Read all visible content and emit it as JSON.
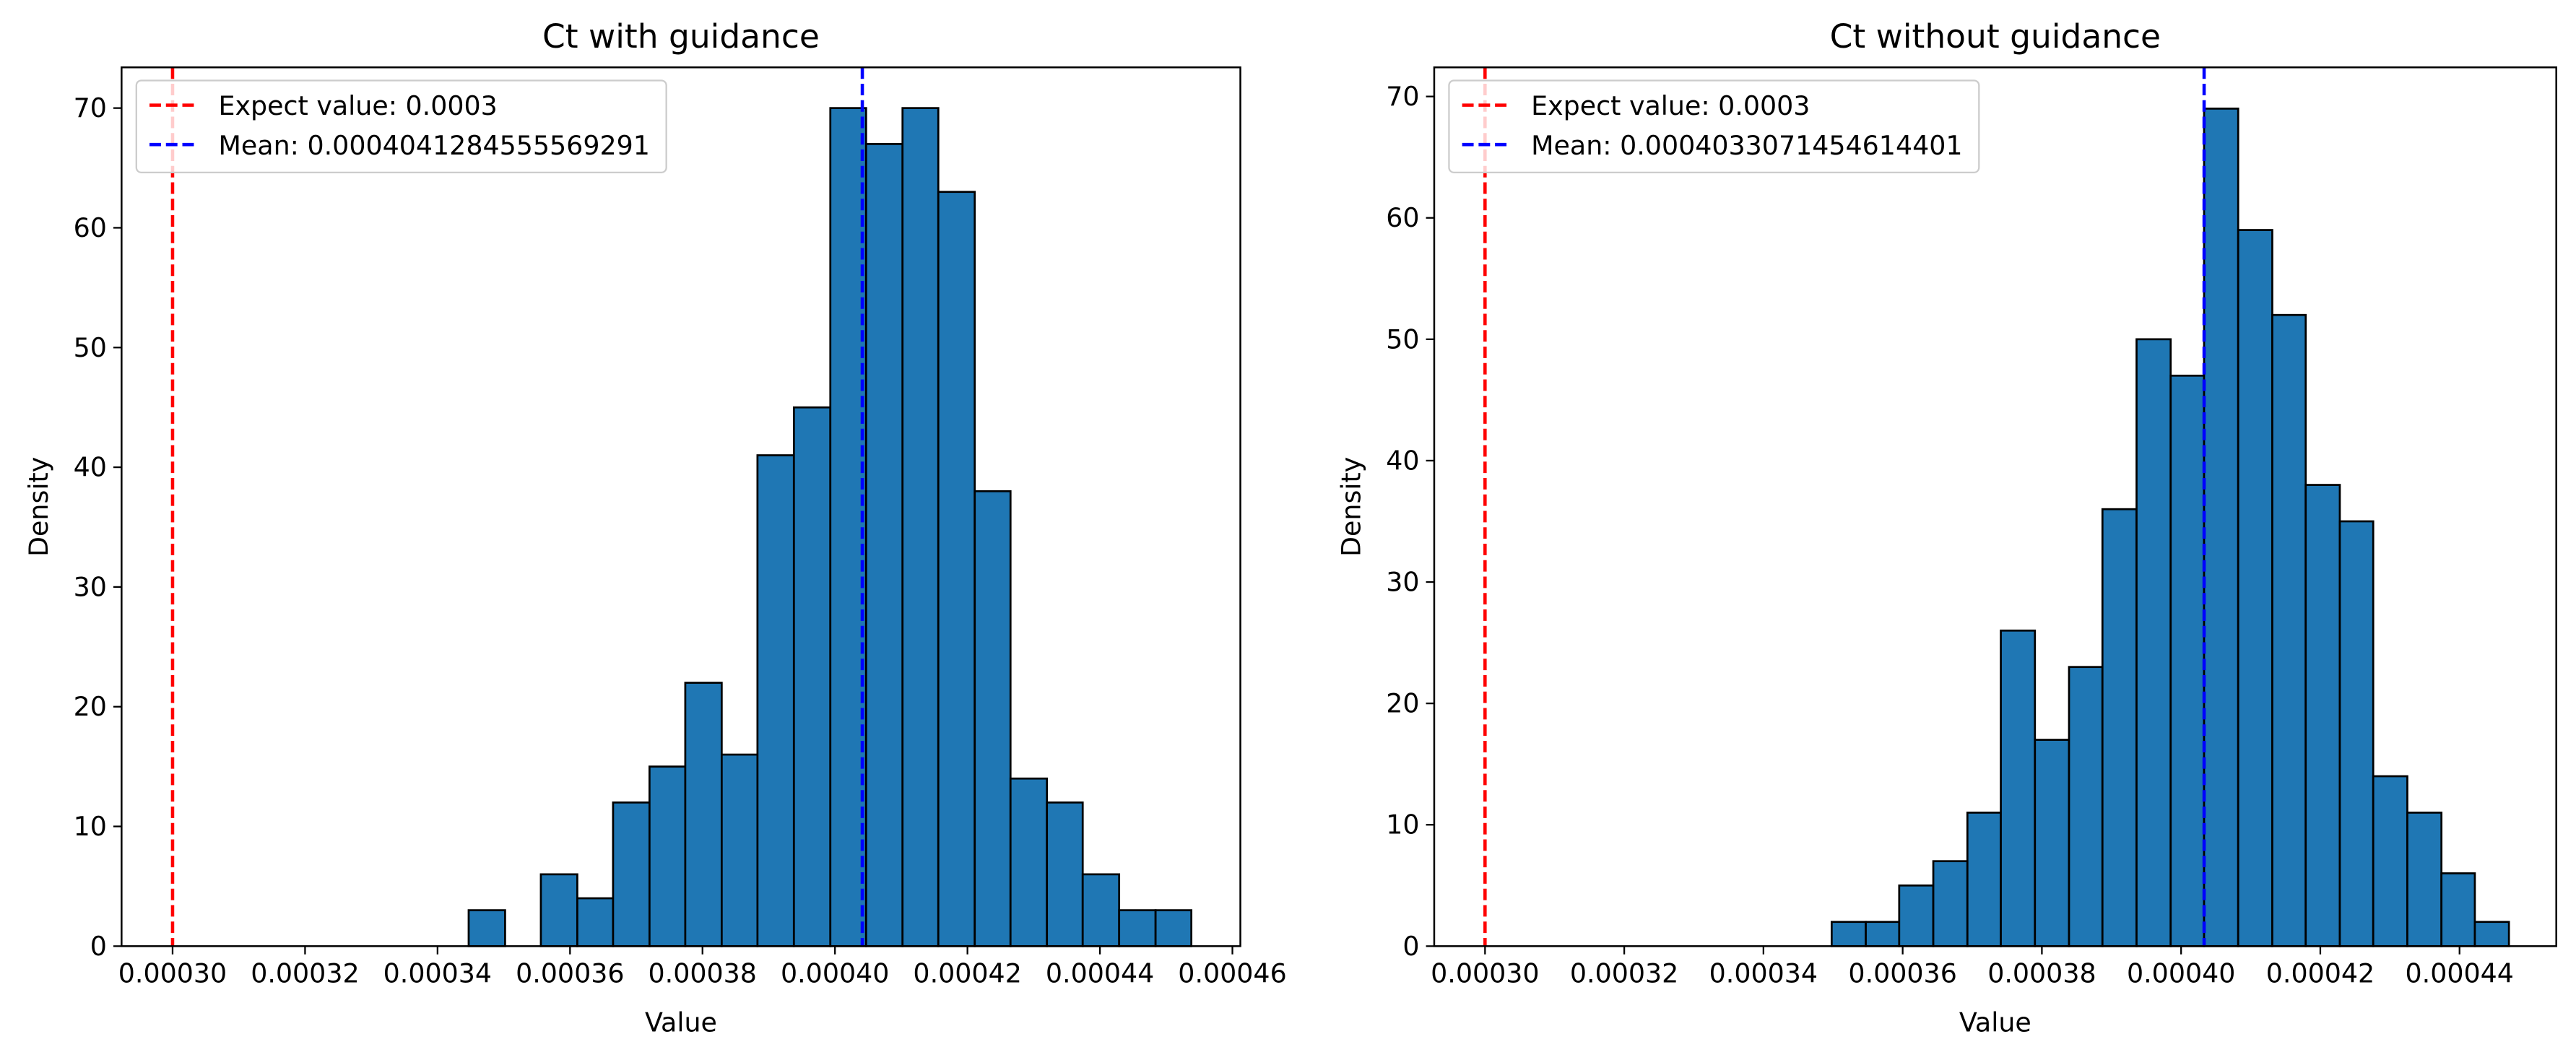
{
  "chart_data": [
    {
      "type": "histogram",
      "title": "Ct with guidance",
      "xlabel": "Value",
      "ylabel": "Density",
      "bins": [
        0.0003447,
        0.0003502,
        0.0003556,
        0.0003611,
        0.0003665,
        0.000372,
        0.0003774,
        0.0003829,
        0.0003883,
        0.0003938,
        0.0003993,
        0.0004047,
        0.0004102,
        0.0004156,
        0.0004211,
        0.0004265,
        0.000432,
        0.0004374,
        0.0004429,
        0.0004484,
        0.0004538
      ],
      "values": [
        3,
        0,
        6,
        4,
        12,
        15,
        22,
        16,
        41,
        45,
        70,
        67,
        70,
        63,
        38,
        14,
        12,
        6,
        3,
        3
      ],
      "color": "#1f77b4",
      "edgecolor": "#000000",
      "xlim": [
        0.0002923,
        0.0004612
      ],
      "ylim": [
        0,
        73.4
      ],
      "xticks": [
        {
          "value": 0.0003,
          "label": "0.00030"
        },
        {
          "value": 0.00032,
          "label": "0.00032"
        },
        {
          "value": 0.00034,
          "label": "0.00034"
        },
        {
          "value": 0.00036,
          "label": "0.00036"
        },
        {
          "value": 0.00038,
          "label": "0.00038"
        },
        {
          "value": 0.0004,
          "label": "0.00040"
        },
        {
          "value": 0.00042,
          "label": "0.00042"
        },
        {
          "value": 0.00044,
          "label": "0.00044"
        },
        {
          "value": 0.00046,
          "label": "0.00046"
        }
      ],
      "yticks": [
        0,
        10,
        20,
        30,
        40,
        50,
        60,
        70
      ],
      "vlines": [
        {
          "name": "Expect value: 0.0003",
          "value": 0.0003,
          "color": "#ff0000"
        },
        {
          "name": "Mean: 0.0004041284555569291",
          "value": 0.0004041284555569291,
          "color": "#0000ff"
        }
      ],
      "legend": "upper left"
    },
    {
      "type": "histogram",
      "title": "Ct without guidance",
      "xlabel": "Value",
      "ylabel": "Density",
      "bins": [
        0.0003498,
        0.0003547,
        0.0003595,
        0.0003644,
        0.0003693,
        0.0003741,
        0.000379,
        0.0003839,
        0.0003887,
        0.0003936,
        0.0003985,
        0.0004033,
        0.0004082,
        0.0004131,
        0.0004179,
        0.0004228,
        0.0004276,
        0.0004325,
        0.0004374,
        0.0004422,
        0.0004471
      ],
      "values": [
        2,
        2,
        5,
        7,
        11,
        26,
        17,
        23,
        36,
        50,
        47,
        69,
        59,
        52,
        38,
        35,
        14,
        11,
        6,
        2
      ],
      "color": "#1f77b4",
      "edgecolor": "#000000",
      "xlim": [
        0.0002927,
        0.0004539
      ],
      "ylim": [
        0,
        72.4
      ],
      "xticks": [
        {
          "value": 0.0003,
          "label": "0.00030"
        },
        {
          "value": 0.00032,
          "label": "0.00032"
        },
        {
          "value": 0.00034,
          "label": "0.00034"
        },
        {
          "value": 0.00036,
          "label": "0.00036"
        },
        {
          "value": 0.00038,
          "label": "0.00038"
        },
        {
          "value": 0.0004,
          "label": "0.00040"
        },
        {
          "value": 0.00042,
          "label": "0.00042"
        },
        {
          "value": 0.00044,
          "label": "0.00044"
        }
      ],
      "yticks": [
        0,
        10,
        20,
        30,
        40,
        50,
        60,
        70
      ],
      "vlines": [
        {
          "name": "Expect value: 0.0003",
          "value": 0.0003,
          "color": "#ff0000"
        },
        {
          "name": "Mean: 0.0004033071454614401",
          "value": 0.0004033071454614401,
          "color": "#0000ff"
        }
      ],
      "legend": "upper left"
    }
  ]
}
